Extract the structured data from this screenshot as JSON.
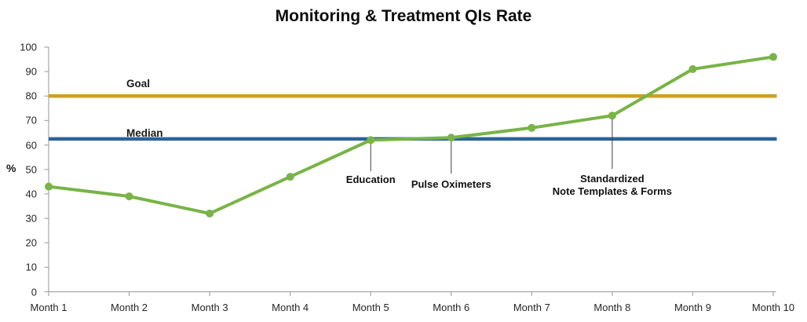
{
  "title": "Monitoring & Treatment QIs Rate",
  "chart_data": {
    "type": "line",
    "categories": [
      "Month 1",
      "Month 2",
      "Month 3",
      "Month 4",
      "Month 5",
      "Month 6",
      "Month 7",
      "Month 8",
      "Month 9",
      "Month 10"
    ],
    "series": [
      {
        "values": [
          43,
          39,
          32,
          47,
          62,
          63,
          67,
          72,
          91,
          96
        ],
        "color": "#78B446"
      }
    ],
    "reference_lines": [
      {
        "label": "Goal",
        "value": 80,
        "color": "#CF9E24"
      },
      {
        "label": "Median",
        "value": 62.5,
        "color": "#2D6398"
      }
    ],
    "annotations": [
      {
        "category_index": 4,
        "lines": [
          "Education"
        ]
      },
      {
        "category_index": 5,
        "lines": [
          "Pulse Oximeters"
        ]
      },
      {
        "category_index": 7,
        "lines": [
          "Standardized",
          "Note Templates & Forms"
        ]
      }
    ],
    "ylabel": "%",
    "ylim": [
      0,
      100
    ],
    "ytick_step": 10,
    "grid": false,
    "legend": "none",
    "axis_color": "#A6A6A6",
    "callout_color": "#404040"
  }
}
